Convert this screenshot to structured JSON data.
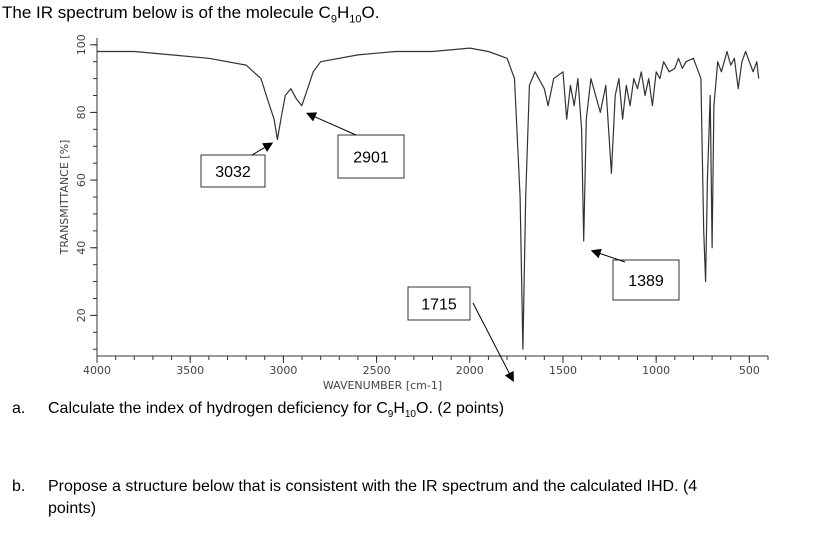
{
  "question_intro": {
    "before": "The IR spectrum below is of the molecule C",
    "sub1": "9",
    "mid": "H",
    "sub2": "10",
    "after": "O."
  },
  "part_a": {
    "label": "a.",
    "text_before": "Calculate the index of hydrogen deficiency for C",
    "sub1": "9",
    "mid": "H",
    "sub2": "10",
    "text_after": "O. (2 points)"
  },
  "part_b": {
    "label": "b.",
    "line1": "Propose a structure below that is consistent with the IR spectrum and the calculated IHD. (4",
    "line2": "points)"
  },
  "chart_data": {
    "type": "line",
    "xlabel": "WAVENUMBER [cm-1]",
    "ylabel": "TRANSMITTANCE [%]",
    "x_reversed": true,
    "xlim": [
      4000,
      400
    ],
    "ylim": [
      8,
      102
    ],
    "x_ticks": [
      4000,
      3500,
      3000,
      2500,
      2000,
      1500,
      1000,
      500
    ],
    "y_ticks": [
      20,
      40,
      60,
      80,
      100
    ],
    "grid": false,
    "series": [
      {
        "values": [
          [
            4000,
            98
          ],
          [
            3800,
            98
          ],
          [
            3600,
            97
          ],
          [
            3400,
            96
          ],
          [
            3200,
            94
          ],
          [
            3120,
            90
          ],
          [
            3080,
            83
          ],
          [
            3050,
            78
          ],
          [
            3032,
            72
          ],
          [
            3010,
            79
          ],
          [
            2990,
            85
          ],
          [
            2960,
            87
          ],
          [
            2930,
            84
          ],
          [
            2901,
            82
          ],
          [
            2870,
            87
          ],
          [
            2840,
            92
          ],
          [
            2800,
            95
          ],
          [
            2600,
            97
          ],
          [
            2400,
            98
          ],
          [
            2200,
            98
          ],
          [
            2000,
            99
          ],
          [
            1900,
            98
          ],
          [
            1800,
            96
          ],
          [
            1760,
            90
          ],
          [
            1730,
            55
          ],
          [
            1715,
            10
          ],
          [
            1700,
            55
          ],
          [
            1680,
            88
          ],
          [
            1650,
            92
          ],
          [
            1600,
            87
          ],
          [
            1580,
            82
          ],
          [
            1550,
            90
          ],
          [
            1500,
            92
          ],
          [
            1480,
            78
          ],
          [
            1460,
            88
          ],
          [
            1440,
            82
          ],
          [
            1420,
            90
          ],
          [
            1400,
            75
          ],
          [
            1389,
            42
          ],
          [
            1375,
            78
          ],
          [
            1350,
            90
          ],
          [
            1330,
            86
          ],
          [
            1300,
            80
          ],
          [
            1270,
            88
          ],
          [
            1240,
            62
          ],
          [
            1220,
            85
          ],
          [
            1200,
            90
          ],
          [
            1180,
            78
          ],
          [
            1160,
            88
          ],
          [
            1140,
            82
          ],
          [
            1120,
            90
          ],
          [
            1100,
            87
          ],
          [
            1080,
            92
          ],
          [
            1060,
            85
          ],
          [
            1040,
            90
          ],
          [
            1020,
            82
          ],
          [
            1000,
            92
          ],
          [
            980,
            90
          ],
          [
            960,
            95
          ],
          [
            930,
            92
          ],
          [
            900,
            93
          ],
          [
            880,
            96
          ],
          [
            860,
            93
          ],
          [
            840,
            95
          ],
          [
            800,
            96
          ],
          [
            760,
            90
          ],
          [
            745,
            45
          ],
          [
            735,
            30
          ],
          [
            725,
            60
          ],
          [
            710,
            85
          ],
          [
            700,
            40
          ],
          [
            690,
            82
          ],
          [
            670,
            95
          ],
          [
            650,
            92
          ],
          [
            620,
            98
          ],
          [
            600,
            94
          ],
          [
            580,
            96
          ],
          [
            560,
            87
          ],
          [
            540,
            95
          ],
          [
            520,
            98
          ],
          [
            480,
            92
          ],
          [
            460,
            95
          ],
          [
            450,
            90
          ]
        ]
      }
    ],
    "annotations": [
      {
        "text": "3032",
        "x": 3032
      },
      {
        "text": "2901",
        "x": 2901
      },
      {
        "text": "1715",
        "x": 1715
      },
      {
        "text": "1389",
        "x": 1389
      }
    ]
  }
}
